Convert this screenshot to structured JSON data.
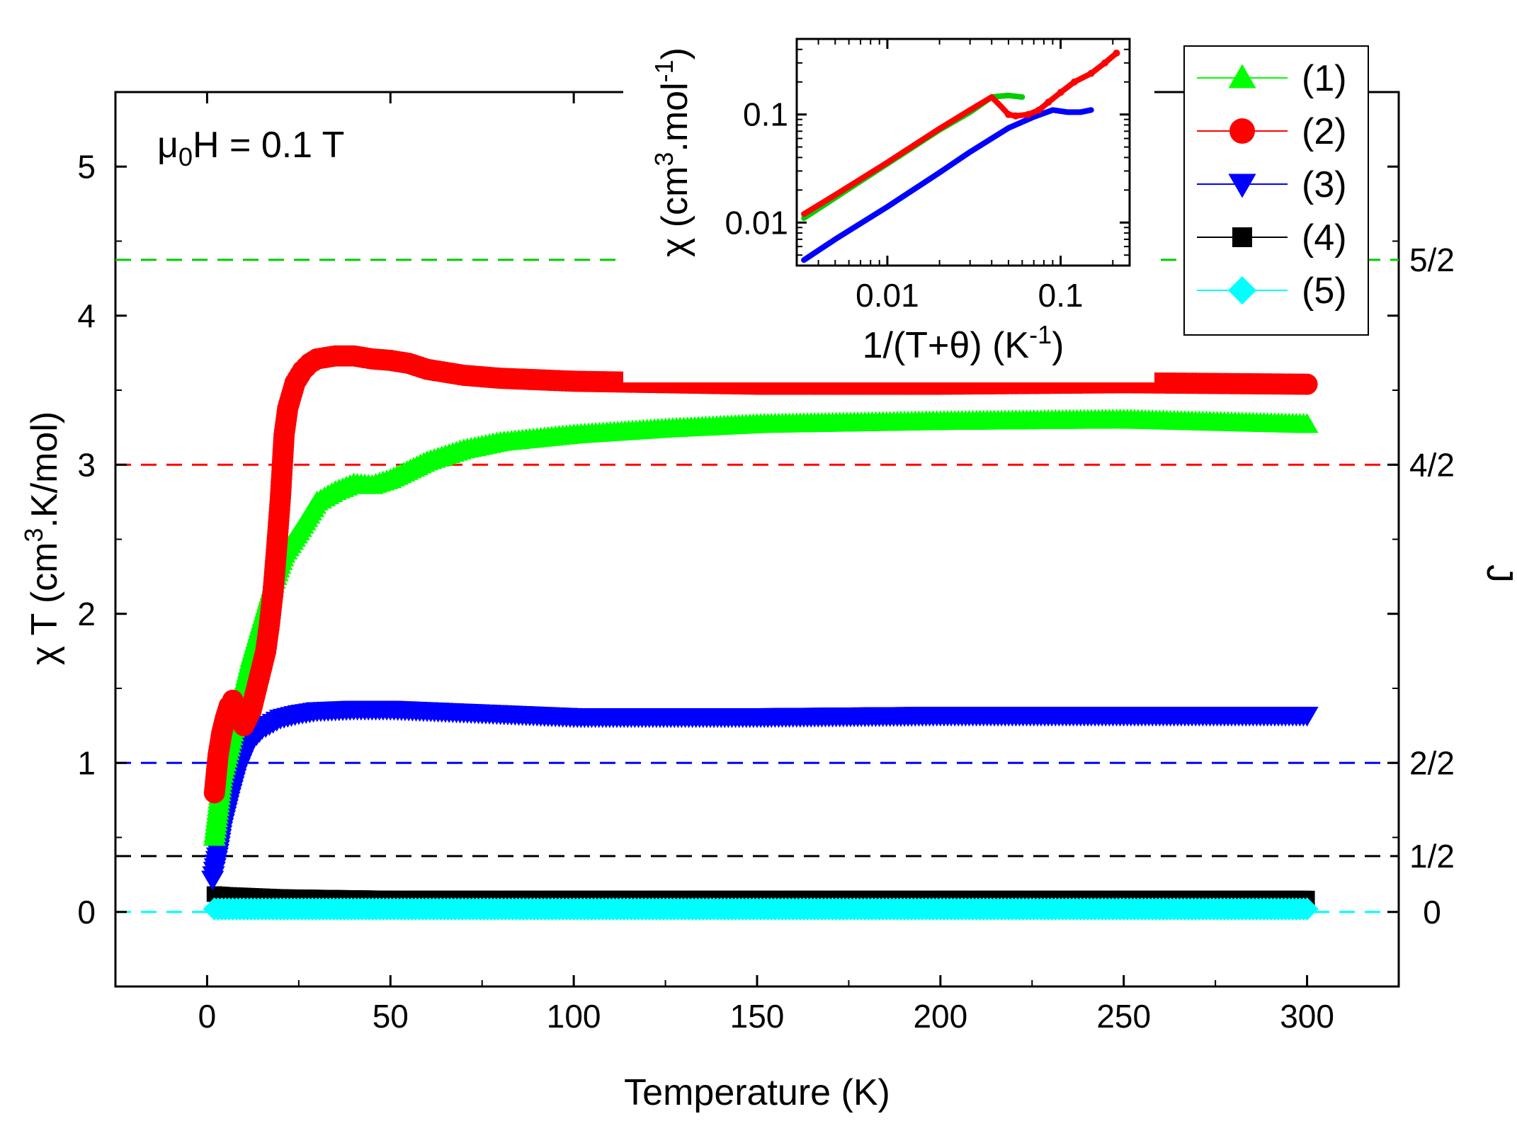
{
  "chart_data": [
    {
      "type": "scatter",
      "title": "",
      "xlabel": "Temperature (K)",
      "ylabel_parts": [
        "χ T (cm",
        "3",
        ".K/mol)"
      ],
      "y2label": "J",
      "annotation_parts": [
        "μ",
        "0",
        "H = 0.1 T"
      ],
      "xlim": [
        -25,
        325
      ],
      "ylim": [
        -0.5,
        5.5
      ],
      "xticks": [
        0,
        50,
        100,
        150,
        200,
        250,
        300
      ],
      "yticks": [
        0,
        1,
        2,
        3,
        4,
        5
      ],
      "reference_lines": [
        {
          "y": 4.375,
          "label": "5/2",
          "color": "#00cc00"
        },
        {
          "y": 3.0,
          "label": "4/2",
          "color": "#ff0000"
        },
        {
          "y": 1.0,
          "label": "2/2",
          "color": "#0000ff"
        },
        {
          "y": 0.375,
          "label": "1/2",
          "color": "#000000"
        },
        {
          "y": 0.0,
          "label": "0",
          "color": "#00ffff"
        }
      ],
      "legend": {
        "position": "top-right",
        "entries": [
          "(1)",
          "(2)",
          "(3)",
          "(4)",
          "(5)"
        ]
      },
      "series": [
        {
          "name": "(1)",
          "color": "#00ff00",
          "marker": "triangle-up",
          "x": [
            2,
            4,
            6,
            8,
            10,
            12,
            15,
            18,
            21,
            25,
            30,
            35,
            40,
            45,
            50,
            60,
            70,
            80,
            100,
            125,
            150,
            200,
            250,
            300
          ],
          "y": [
            0.5,
            0.9,
            1.1,
            1.3,
            1.5,
            1.7,
            1.95,
            2.2,
            2.4,
            2.55,
            2.75,
            2.82,
            2.87,
            2.86,
            2.9,
            3.02,
            3.1,
            3.15,
            3.2,
            3.24,
            3.27,
            3.29,
            3.3,
            3.27
          ]
        },
        {
          "name": "(2)",
          "color": "#ff0000",
          "marker": "circle",
          "x": [
            2,
            3,
            4,
            5,
            6,
            7,
            8,
            10,
            12,
            14,
            16,
            17,
            18,
            19,
            20,
            21,
            22,
            24,
            26,
            28,
            30,
            35,
            40,
            45,
            50,
            55,
            60,
            70,
            80,
            100,
            150,
            200,
            250,
            300
          ],
          "y": [
            0.8,
            1.05,
            1.2,
            1.3,
            1.38,
            1.42,
            1.36,
            1.25,
            1.35,
            1.55,
            1.75,
            1.93,
            2.15,
            2.45,
            2.78,
            3.2,
            3.38,
            3.55,
            3.63,
            3.68,
            3.71,
            3.73,
            3.73,
            3.71,
            3.7,
            3.68,
            3.64,
            3.6,
            3.58,
            3.56,
            3.54,
            3.54,
            3.55,
            3.54
          ]
        },
        {
          "name": "(3)",
          "color": "#0000ff",
          "marker": "triangle-down",
          "x": [
            1.5,
            2,
            3,
            4,
            5,
            6,
            8,
            10,
            12,
            15,
            20,
            25,
            30,
            40,
            50,
            60,
            80,
            100,
            150,
            200,
            250,
            300
          ],
          "y": [
            0.22,
            0.28,
            0.4,
            0.55,
            0.65,
            0.75,
            0.93,
            1.05,
            1.15,
            1.23,
            1.3,
            1.33,
            1.35,
            1.36,
            1.36,
            1.35,
            1.33,
            1.31,
            1.31,
            1.32,
            1.32,
            1.32
          ]
        },
        {
          "name": "(4)",
          "color": "#000000",
          "marker": "square",
          "x": [
            2,
            5,
            10,
            20,
            50,
            100,
            150,
            200,
            250,
            300
          ],
          "y": [
            0.12,
            0.115,
            0.11,
            0.1,
            0.09,
            0.09,
            0.09,
            0.09,
            0.09,
            0.09
          ]
        },
        {
          "name": "(5)",
          "color": "#00ffff",
          "marker": "diamond",
          "x": [
            2,
            5,
            10,
            20,
            50,
            100,
            150,
            200,
            250,
            300
          ],
          "y": [
            0.02,
            0.02,
            0.02,
            0.02,
            0.02,
            0.02,
            0.02,
            0.02,
            0.02,
            0.02
          ]
        }
      ]
    },
    {
      "type": "line",
      "title": "",
      "xlabel_parts": [
        "1/(T+θ) (K",
        "-1",
        ")"
      ],
      "ylabel_parts": [
        "χ (cm",
        "3",
        ".mol",
        "-1",
        ")"
      ],
      "xscale": "log",
      "yscale": "log",
      "xlim": [
        0.003,
        0.25
      ],
      "ylim": [
        0.004,
        0.5
      ],
      "xticks": [
        0.01,
        0.1
      ],
      "xtick_labels": [
        "0.01",
        "0.1"
      ],
      "yticks": [
        0.01,
        0.1
      ],
      "ytick_labels": [
        "0.01",
        "0.1"
      ],
      "series": [
        {
          "name": "(1)",
          "color": "#00cc00",
          "x": [
            0.0033,
            0.005,
            0.01,
            0.02,
            0.03,
            0.04,
            0.05,
            0.06
          ],
          "y": [
            0.011,
            0.017,
            0.035,
            0.072,
            0.105,
            0.145,
            0.15,
            0.145
          ]
        },
        {
          "name": "(2)",
          "color": "#ff0000",
          "x": [
            0.0033,
            0.005,
            0.01,
            0.02,
            0.03,
            0.04,
            0.045,
            0.05,
            0.055,
            0.065,
            0.075,
            0.085,
            0.1,
            0.12,
            0.15,
            0.18,
            0.21
          ],
          "y": [
            0.012,
            0.018,
            0.036,
            0.074,
            0.11,
            0.145,
            0.12,
            0.1,
            0.097,
            0.1,
            0.11,
            0.13,
            0.16,
            0.2,
            0.24,
            0.3,
            0.37
          ]
        },
        {
          "name": "(3)",
          "color": "#0000ff",
          "x": [
            0.0033,
            0.005,
            0.01,
            0.02,
            0.03,
            0.05,
            0.07,
            0.09,
            0.11,
            0.13,
            0.15
          ],
          "y": [
            0.0045,
            0.007,
            0.014,
            0.029,
            0.045,
            0.075,
            0.095,
            0.11,
            0.105,
            0.105,
            0.11
          ]
        }
      ]
    }
  ]
}
